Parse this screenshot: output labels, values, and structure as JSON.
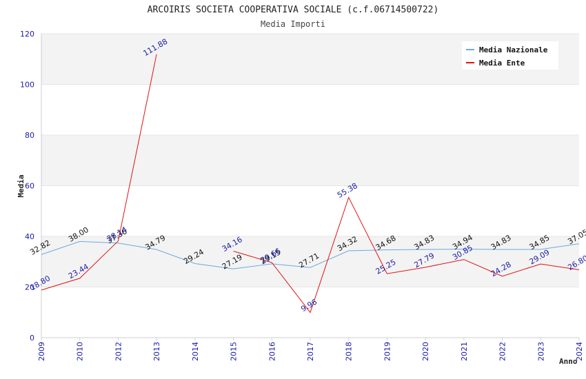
{
  "chart_data": {
    "type": "line",
    "title": "ARCOIRIS SOCIETA COOPERATIVA SOCIALE (c.f.06714500722)",
    "subtitle": "Media Importi",
    "xlabel": "Anno",
    "ylabel": "Media",
    "ylim": [
      0,
      120
    ],
    "yticks": [
      0,
      20,
      40,
      60,
      80,
      100,
      120
    ],
    "categories": [
      "2009",
      "2010",
      "2012",
      "2013",
      "2014",
      "2015",
      "2016",
      "2017",
      "2018",
      "2019",
      "2020",
      "2021",
      "2022",
      "2023",
      "2024"
    ],
    "legend_position": "top-right",
    "series": [
      {
        "name": "Media Nazionale",
        "color": "#6aa9e0",
        "values": [
          32.82,
          38.0,
          37.36,
          34.79,
          29.24,
          27.19,
          29.15,
          27.71,
          34.32,
          34.68,
          34.83,
          34.94,
          34.83,
          34.85,
          37.05
        ],
        "labels": [
          "32.82",
          "38.00",
          "37.36",
          "34.79",
          "29.24",
          "27.19",
          "29.15",
          "27.71",
          "34.32",
          "34.68",
          "34.83",
          "34.94",
          "34.83",
          "34.85",
          "37.05"
        ]
      },
      {
        "name": "Media Ente",
        "color": "#e01010",
        "values": [
          18.8,
          23.44,
          38.14,
          111.88,
          null,
          34.16,
          29.66,
          9.96,
          55.38,
          25.25,
          27.79,
          30.85,
          24.28,
          29.09,
          26.8
        ],
        "labels": [
          "18.80",
          "23.44",
          "38.14",
          "111.88",
          "",
          "34.16",
          "29.66",
          "9.96",
          "55.38",
          "25.25",
          "27.79",
          "30.85",
          "24.28",
          "29.09",
          "26.80"
        ]
      }
    ]
  }
}
